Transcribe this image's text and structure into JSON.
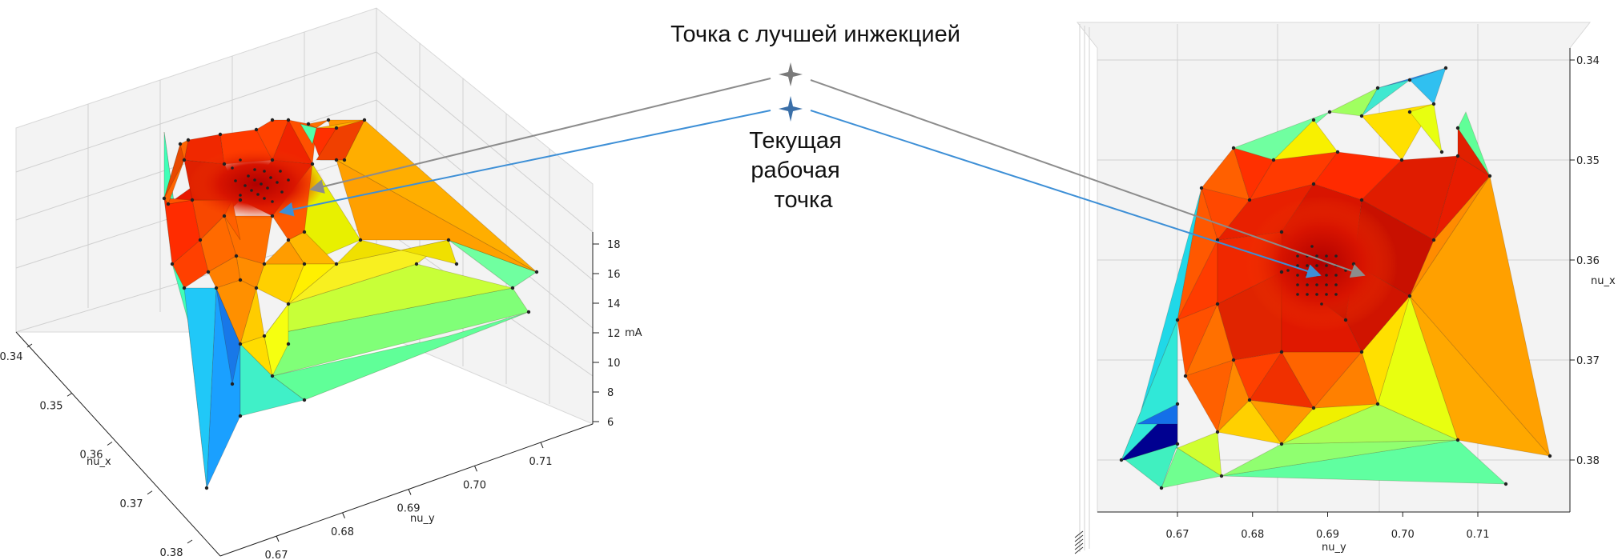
{
  "annotations": {
    "best_injection_label": "Точка с лучшей инжекцией",
    "current_point_lines": [
      "Текущая",
      "рабочая",
      "точка"
    ]
  },
  "colors": {
    "best_marker": "#7a7a7a",
    "current_marker": "#3a6fa8",
    "best_arrow": "#8c8c8c",
    "current_arrow": "#3d8fd6"
  },
  "chart_data": [
    {
      "type": "surface3d",
      "colormap": "jet",
      "x_axis": {
        "label": "nu_x",
        "ticks": [
          "0.34",
          "0.35",
          "0.36",
          "0.37",
          "0.38"
        ]
      },
      "y_axis": {
        "label": "nu_y",
        "ticks": [
          "0.67",
          "0.68",
          "0.69",
          "0.70",
          "0.71"
        ]
      },
      "z_axis": {
        "label": "mA",
        "ticks": [
          "6",
          "8",
          "10",
          "12",
          "14",
          "16",
          "18"
        ]
      }
    },
    {
      "type": "surface_topview",
      "colormap": "jet",
      "x_axis": {
        "label": "nu_y",
        "ticks": [
          "0.67",
          "0.68",
          "0.69",
          "0.70",
          "0.71"
        ]
      },
      "y_axis": {
        "label": "nu_x",
        "ticks": [
          "0.34",
          "0.35",
          "0.36",
          "0.37",
          "0.38"
        ]
      }
    }
  ]
}
